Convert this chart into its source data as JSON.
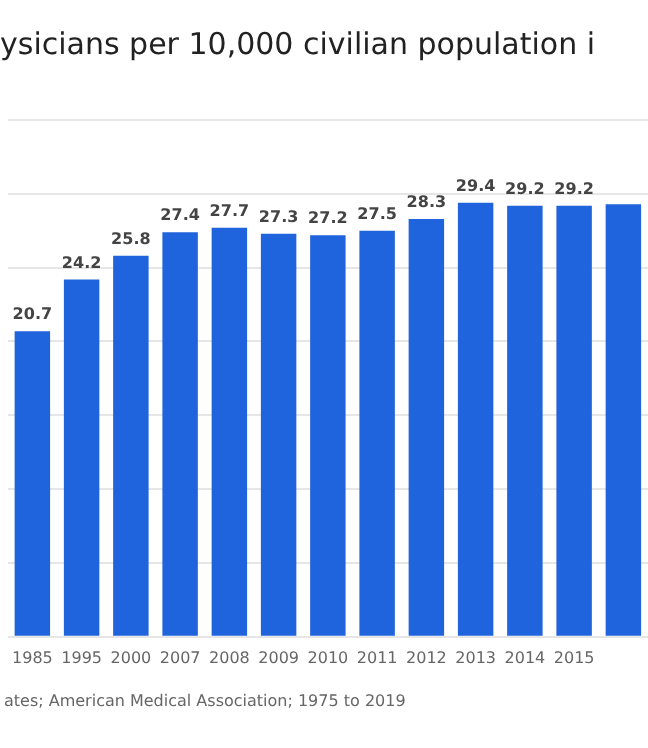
{
  "chart_data": {
    "type": "bar",
    "title": "ysicians per 10,000 civilian population i",
    "categories": [
      "1985",
      "1995",
      "2000",
      "2007",
      "2008",
      "2009",
      "2010",
      "2011",
      "2012",
      "2013",
      "2014",
      "2015",
      null
    ],
    "values": [
      20.7,
      24.2,
      25.8,
      27.4,
      27.7,
      27.3,
      27.2,
      27.5,
      28.3,
      29.4,
      29.2,
      29.2,
      29.3
    ],
    "value_labels": [
      "20.7",
      "24.2",
      "25.8",
      "27.4",
      "27.7",
      "27.3",
      "27.2",
      "27.5",
      "28.3",
      "29.4",
      "29.2",
      "29.2",
      null
    ],
    "color": "#1f64dc",
    "ylim": [
      0,
      35
    ],
    "yticks": [
      {
        "value": 0,
        "label": null
      },
      {
        "value": 5,
        "label": null
      },
      {
        "value": 10,
        "label": null
      },
      {
        "value": 15,
        "label": null
      },
      {
        "value": 20,
        "label": null
      },
      {
        "value": 25,
        "label": null
      },
      {
        "value": 30,
        "label": null
      },
      {
        "value": 35,
        "label": null
      }
    ],
    "tick_labels": "x",
    "grid": "y",
    "legend": false,
    "annotations": [
      "ates; American Medical Association; 1975 to 2019"
    ]
  }
}
